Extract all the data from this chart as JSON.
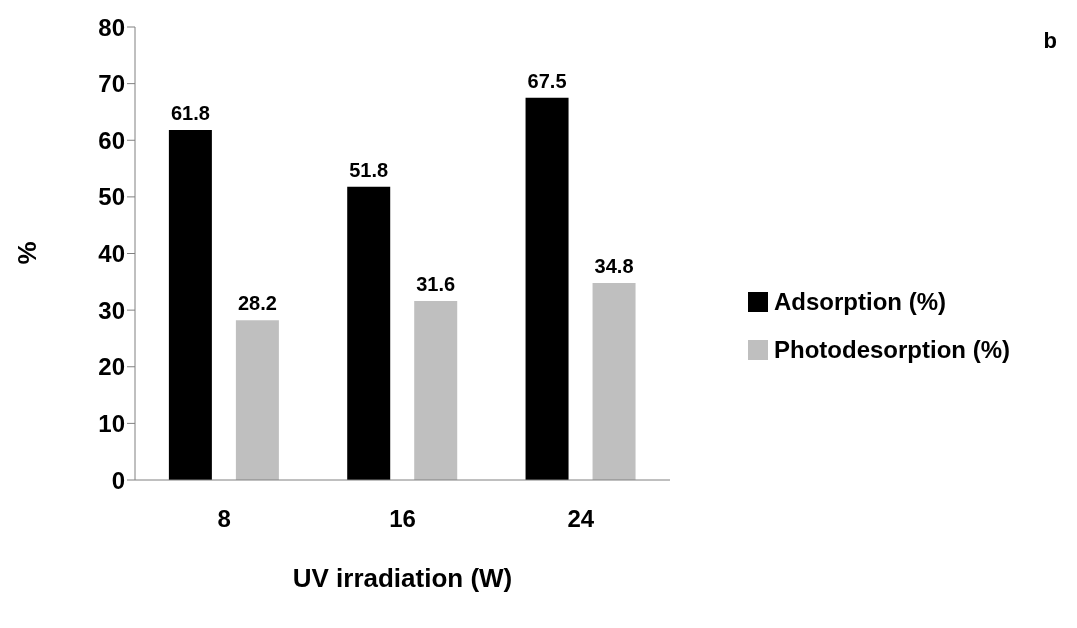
{
  "chart_data": {
    "type": "bar",
    "xlabel": "UV irradiation (W)",
    "ylabel": "%",
    "categories": [
      "8",
      "16",
      "24"
    ],
    "series": [
      {
        "name": "Adsorption (%)",
        "color": "#000000",
        "values": [
          61.8,
          51.8,
          67.5
        ]
      },
      {
        "name": "Photodesorption (%)",
        "color": "#bfbfbf",
        "values": [
          28.2,
          31.6,
          34.8
        ]
      }
    ],
    "ylim": [
      0,
      80
    ],
    "yticks": [
      0,
      10,
      20,
      30,
      40,
      50,
      60,
      70,
      80
    ],
    "data_labels": true,
    "legend": "right",
    "grid": false,
    "annotations": [
      "b"
    ]
  }
}
